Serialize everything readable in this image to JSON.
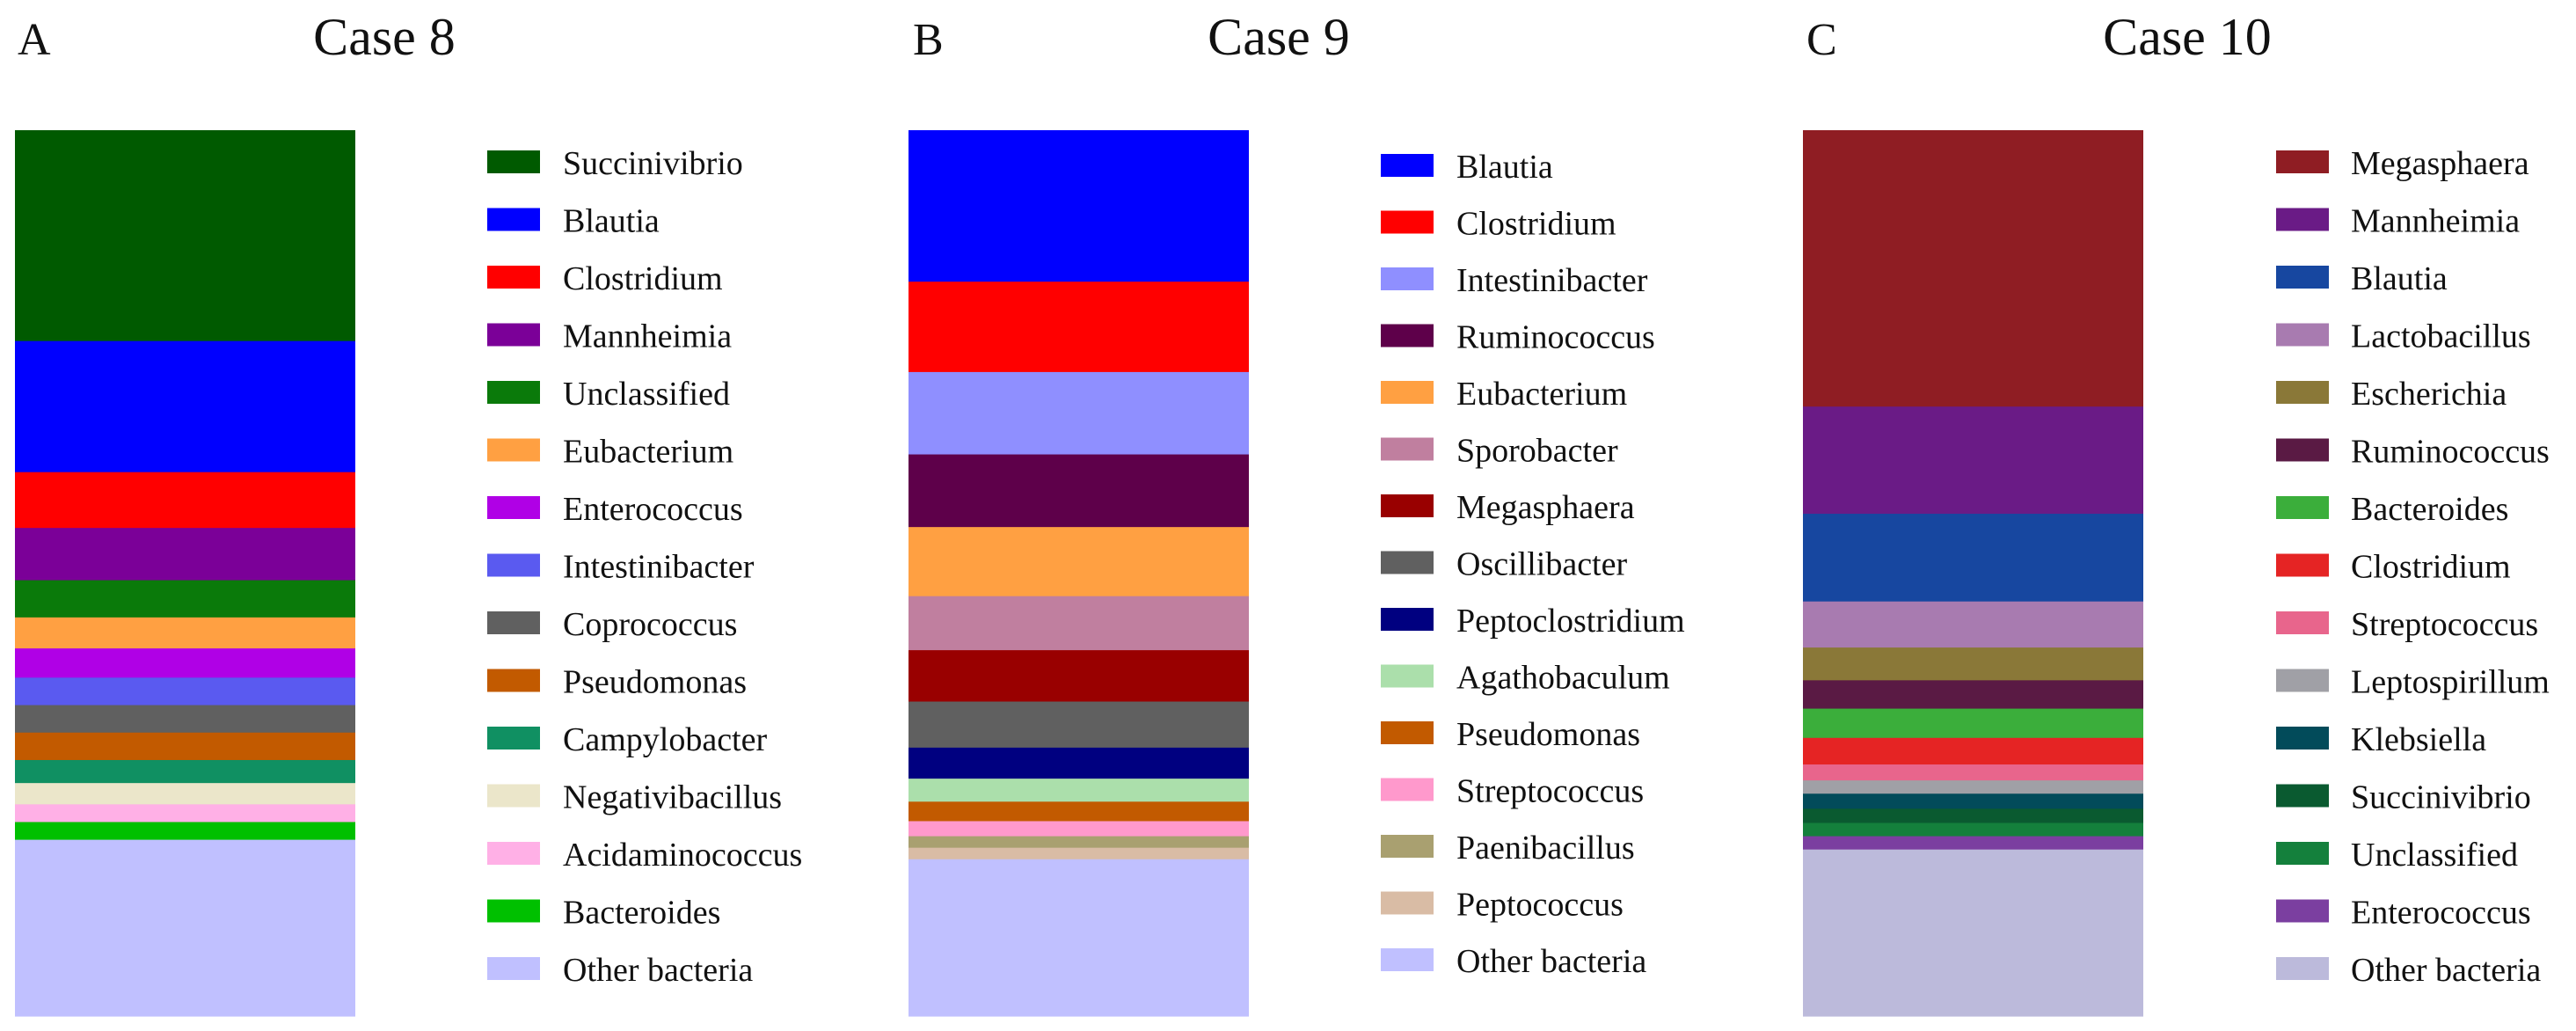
{
  "chart_data": [
    {
      "type": "bar",
      "subtype": "stacked-100",
      "panel": "A",
      "title": "Case 8",
      "xlabel": "",
      "ylabel": "",
      "ylim": [
        0,
        100
      ],
      "legend_position": "right",
      "series": [
        {
          "name": "Succinivibrio",
          "value": 23.8,
          "color": "#005A00"
        },
        {
          "name": "Blautia",
          "value": 14.8,
          "color": "#0000FF"
        },
        {
          "name": "Clostridium",
          "value": 6.3,
          "color": "#FF0000"
        },
        {
          "name": "Mannheimia",
          "value": 5.9,
          "color": "#7B0098"
        },
        {
          "name": "Unclassified",
          "value": 4.2,
          "color": "#0A7A0A"
        },
        {
          "name": "Eubacterium",
          "value": 3.5,
          "color": "#FFA042"
        },
        {
          "name": "Enterococcus",
          "value": 3.3,
          "color": "#B000E6"
        },
        {
          "name": "Intestinibacter",
          "value": 3.1,
          "color": "#5A5AF0"
        },
        {
          "name": "Coprococcus",
          "value": 3.1,
          "color": "#606060"
        },
        {
          "name": "Pseudomonas",
          "value": 3.1,
          "color": "#C25A00"
        },
        {
          "name": "Campylobacter",
          "value": 2.6,
          "color": "#109062"
        },
        {
          "name": "Negativibacillus",
          "value": 2.4,
          "color": "#EBE6CA"
        },
        {
          "name": "Acidaminococcus",
          "value": 2.0,
          "color": "#FFB0E6"
        },
        {
          "name": "Bacteroides",
          "value": 2.0,
          "color": "#00C000"
        },
        {
          "name": "Other bacteria",
          "value": 19.9,
          "color": "#C0C0FF"
        }
      ]
    },
    {
      "type": "bar",
      "subtype": "stacked-100",
      "panel": "B",
      "title": "Case 9",
      "xlabel": "",
      "ylabel": "",
      "ylim": [
        0,
        100
      ],
      "legend_position": "right",
      "series": [
        {
          "name": "Blautia",
          "value": 17.1,
          "color": "#0000FF"
        },
        {
          "name": "Clostridium",
          "value": 10.2,
          "color": "#FF0000"
        },
        {
          "name": "Intestinibacter",
          "value": 9.3,
          "color": "#8F8FFF"
        },
        {
          "name": "Ruminococcus",
          "value": 8.2,
          "color": "#5E004A"
        },
        {
          "name": "Eubacterium",
          "value": 7.8,
          "color": "#FFA042"
        },
        {
          "name": "Sporobacter",
          "value": 6.1,
          "color": "#C07F9F"
        },
        {
          "name": "Megasphaera",
          "value": 5.8,
          "color": "#990000"
        },
        {
          "name": "Oscillibacter",
          "value": 5.2,
          "color": "#606060"
        },
        {
          "name": "Peptoclostridium",
          "value": 3.5,
          "color": "#000080"
        },
        {
          "name": "Agathobaculum",
          "value": 2.6,
          "color": "#ABDFAB"
        },
        {
          "name": "Pseudomonas",
          "value": 2.2,
          "color": "#C25A00"
        },
        {
          "name": "Streptococcus",
          "value": 1.7,
          "color": "#FF99CC"
        },
        {
          "name": "Paenibacillus",
          "value": 1.3,
          "color": "#A9A070"
        },
        {
          "name": "Peptococcus",
          "value": 1.3,
          "color": "#D9BCA5"
        },
        {
          "name": "Other bacteria",
          "value": 17.7,
          "color": "#C0C0FF"
        }
      ]
    },
    {
      "type": "bar",
      "subtype": "stacked-100",
      "panel": "C",
      "title": "Case 10",
      "xlabel": "",
      "ylabel": "",
      "ylim": [
        0,
        100
      ],
      "legend_position": "right",
      "series": [
        {
          "name": "Megasphaera",
          "value": 31.2,
          "color": "#8F1D23"
        },
        {
          "name": "Mannheimia",
          "value": 12.1,
          "color": "#6A1B86"
        },
        {
          "name": "Blautia",
          "value": 9.9,
          "color": "#1747A0"
        },
        {
          "name": "Lactobacillus",
          "value": 5.2,
          "color": "#A87BB0"
        },
        {
          "name": "Escherichia",
          "value": 3.7,
          "color": "#8A7838"
        },
        {
          "name": "Ruminococcus",
          "value": 3.2,
          "color": "#5A1A44"
        },
        {
          "name": "Bacteroides",
          "value": 3.3,
          "color": "#3BAE3B"
        },
        {
          "name": "Clostridium",
          "value": 3.0,
          "color": "#E52424"
        },
        {
          "name": "Streptococcus",
          "value": 1.8,
          "color": "#E8658C"
        },
        {
          "name": "Leptospirillum",
          "value": 1.5,
          "color": "#A0A0A6"
        },
        {
          "name": "Klebsiella",
          "value": 1.7,
          "color": "#024B5A"
        },
        {
          "name": "Succinivibrio",
          "value": 1.6,
          "color": "#0A5A30"
        },
        {
          "name": "Unclassified",
          "value": 1.5,
          "color": "#14803C"
        },
        {
          "name": "Enterococcus",
          "value": 1.5,
          "color": "#7B3FA0"
        },
        {
          "name": "Other bacteria",
          "value": 18.8,
          "color": "#BCBADB"
        }
      ]
    }
  ]
}
